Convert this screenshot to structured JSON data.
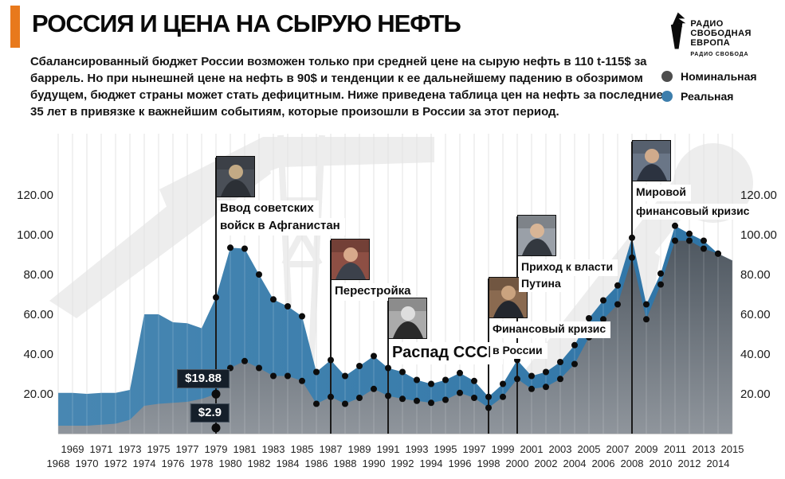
{
  "header": {
    "accent_color": "#e8791c",
    "title": "РОССИЯ И ЦЕНА НА СЫРУЮ НЕФТЬ",
    "intro_lines": [
      "Сбалансированный бюджет России возможен только при средней цене на сырую нефть в 110 t-115$ за",
      "баррель. Но при нынешней цене на нефть в 90$ и тенденции к ее дальнейшему падению в обозримом",
      "будущем, бюджет страны может стать дефицитным. Ниже приведена таблица цен на нефть за последние",
      "35 лет в привязке к важнейшим событиям, которые произошли в России за этот период."
    ]
  },
  "logo": {
    "icon": "torch-icon",
    "name_line1": "РАДИО СВОБОДНАЯ",
    "name_line2": "ЕВРОПА",
    "subtitle": "РАДИО СВОБОДА"
  },
  "legend": {
    "items": [
      {
        "label": "Номинальная",
        "color": "#4d4d4d"
      },
      {
        "label": "Реальная",
        "color": "#3d7eac"
      }
    ]
  },
  "chart_data": {
    "type": "area",
    "x": [
      1968,
      1969,
      1970,
      1971,
      1972,
      1973,
      1974,
      1975,
      1976,
      1977,
      1978,
      1979,
      1980,
      1981,
      1982,
      1983,
      1984,
      1985,
      1986,
      1987,
      1988,
      1989,
      1990,
      1991,
      1992,
      1993,
      1994,
      1995,
      1996,
      1997,
      1998,
      1999,
      2000,
      2001,
      2002,
      2003,
      2004,
      2005,
      2006,
      2007,
      2008,
      2009,
      2010,
      2011,
      2012,
      2013,
      2014,
      2015
    ],
    "series": [
      {
        "name": "Номинальная",
        "color": "#5b636c",
        "values": [
          4,
          4,
          4,
          4.5,
          5,
          7,
          14,
          15,
          15.5,
          16,
          17.5,
          19.88,
          33,
          36.5,
          33,
          29,
          29,
          26.5,
          15,
          18.5,
          15,
          18,
          22.5,
          19,
          17.5,
          16.5,
          15.5,
          17,
          20.5,
          18,
          13,
          18.5,
          27.5,
          22.5,
          23.5,
          27.5,
          35,
          48.5,
          57.5,
          65,
          88.5,
          57.5,
          75,
          97,
          97,
          93,
          90.5,
          87
        ]
      },
      {
        "name": "Реальная",
        "color": "#3f7eac",
        "values": [
          20.5,
          20.5,
          20,
          20.5,
          20.5,
          22,
          60,
          60,
          56,
          55.5,
          53,
          68.5,
          93.5,
          93,
          80,
          67.5,
          64,
          59,
          31,
          37,
          29,
          34,
          39,
          33,
          31,
          27,
          25,
          27,
          30.5,
          26.5,
          18.5,
          25,
          37,
          29,
          31,
          36,
          44.5,
          58,
          67,
          74.5,
          98.5,
          65,
          80.5,
          104.5,
          100.5,
          97,
          90.5,
          87
        ]
      }
    ],
    "ylim": [
      0,
      130
    ],
    "yticks": [
      {
        "value": 20,
        "label": "20.00"
      },
      {
        "value": 40,
        "label": "40.00"
      },
      {
        "value": 60,
        "label": "60.00"
      },
      {
        "value": 80,
        "label": "80.00"
      },
      {
        "value": 100,
        "label": "100.00"
      },
      {
        "value": 120,
        "label": "120.00"
      }
    ],
    "grid": "vertical line per year",
    "legend_position": "top-right",
    "dot_years": {
      "real_from": 1979,
      "nominal_from": 1980,
      "to": 2014
    },
    "events": [
      {
        "year": 1979,
        "label_lines": [
          "Ввод советских",
          "войск в Афганистан"
        ],
        "caption_size": 15,
        "line_gap": 0,
        "photo": "soviet-troops-photo",
        "photo_top": 196,
        "photo_colors": {
          "bg": "#4a4f57",
          "skin": "#c3aa85",
          "suit": "#2c3036"
        }
      },
      {
        "year": 1987,
        "label_lines": [
          "Перестройка"
        ],
        "caption_size": 15,
        "line_gap": 0,
        "photo": "gorbachev-photo",
        "photo_top": 300,
        "photo_colors": {
          "bg": "#8d4f44",
          "skin": "#d8a98b",
          "suit": "#3c414b"
        }
      },
      {
        "year": 1991,
        "label_lines": [
          "Распад СССР"
        ],
        "caption_size": 20,
        "line_gap": 0,
        "photo": "yeltsin-photo",
        "photo_top": 374,
        "photo_colors": {
          "bg": "#ababab",
          "skin": "#dedede",
          "suit": "#2a2a2a"
        }
      },
      {
        "year": 1998,
        "label_lines": [
          "Финансовый кризис",
          "в России"
        ],
        "caption_size": 14,
        "line_gap": 6,
        "photo": "kiriyenko-photo",
        "photo_top": 348,
        "photo_colors": {
          "bg": "#8a6a50",
          "skin": "#caa37f",
          "suit": "#23272e"
        }
      },
      {
        "year": 2000,
        "label_lines": [
          "Приход к власти",
          "Путина"
        ],
        "caption_size": 14,
        "line_gap": 0,
        "photo": "putin-photo",
        "photo_top": 270,
        "photo_colors": {
          "bg": "#9aa0a8",
          "skin": "#d8b596",
          "suit": "#33383f"
        }
      },
      {
        "year": 2008,
        "label_lines": [
          "Мировой",
          "финансовый кризис"
        ],
        "caption_size": 14,
        "line_gap": 3,
        "photo": "officials-photo",
        "photo_top": 176,
        "photo_colors": {
          "bg": "#6a7687",
          "skin": "#d0ab8c",
          "suit": "#2c3340"
        }
      }
    ],
    "callouts": [
      {
        "label": "$19.88",
        "year": 1979,
        "value": 19.88
      },
      {
        "label": "$2.9",
        "year": 1979,
        "value": 2.9
      }
    ]
  }
}
